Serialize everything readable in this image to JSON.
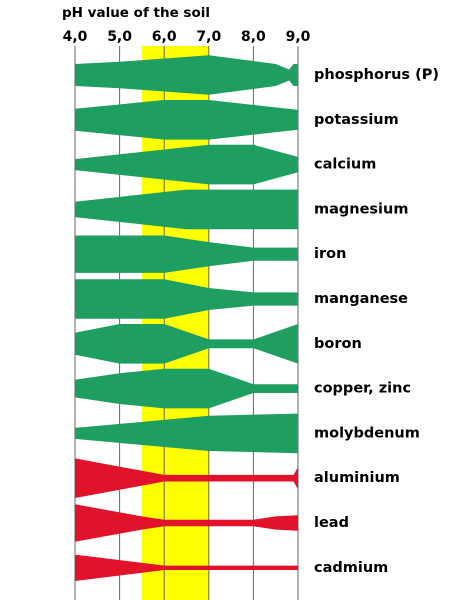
{
  "chart_data": {
    "type": "band",
    "title": "pH value of the soil",
    "xlim": [
      4,
      9
    ],
    "xticks": [
      {
        "value": 4,
        "label": "4,0"
      },
      {
        "value": 5,
        "label": "5,0"
      },
      {
        "value": 6,
        "label": "6,0"
      },
      {
        "value": 7,
        "label": "7,0"
      },
      {
        "value": 8,
        "label": "8,0"
      },
      {
        "value": 9,
        "label": "9,0"
      }
    ],
    "grid": true,
    "highlight": {
      "range": [
        5.5,
        7
      ],
      "color": "#ffff00"
    },
    "series": [
      {
        "name": "phosphorus (P)",
        "color": "#1f9e62",
        "x": [
          4,
          5,
          7,
          8.5,
          8.8,
          8.9,
          9
        ],
        "values": [
          0.5,
          0.6,
          0.9,
          0.5,
          0.25,
          0.5,
          0.5
        ]
      },
      {
        "name": "potassium",
        "color": "#1f9e62",
        "x": [
          4,
          6,
          7,
          9
        ],
        "values": [
          0.5,
          0.9,
          0.9,
          0.45
        ]
      },
      {
        "name": "calcium",
        "color": "#1f9e62",
        "x": [
          4,
          7,
          8,
          9
        ],
        "values": [
          0.25,
          0.9,
          0.9,
          0.35
        ]
      },
      {
        "name": "magnesium",
        "color": "#1f9e62",
        "x": [
          4,
          6.5,
          9
        ],
        "values": [
          0.35,
          0.9,
          0.9
        ]
      },
      {
        "name": "iron",
        "color": "#1f9e62",
        "x": [
          4,
          6,
          7,
          8,
          9
        ],
        "values": [
          0.85,
          0.85,
          0.55,
          0.3,
          0.3
        ]
      },
      {
        "name": "manganese",
        "color": "#1f9e62",
        "x": [
          4,
          6,
          7,
          8,
          9
        ],
        "values": [
          0.9,
          0.9,
          0.5,
          0.3,
          0.3
        ]
      },
      {
        "name": "boron",
        "color": "#1f9e62",
        "x": [
          4,
          5,
          6,
          7,
          8,
          9
        ],
        "values": [
          0.5,
          0.9,
          0.9,
          0.2,
          0.2,
          0.9
        ]
      },
      {
        "name": "copper, zinc",
        "color": "#1f9e62",
        "x": [
          4,
          5,
          6,
          7,
          8,
          9
        ],
        "values": [
          0.4,
          0.7,
          0.9,
          0.9,
          0.2,
          0.2
        ]
      },
      {
        "name": "molybdenum",
        "color": "#1f9e62",
        "x": [
          4,
          7,
          9
        ],
        "values": [
          0.25,
          0.8,
          0.9
        ]
      },
      {
        "name": "aluminium",
        "color": "#e3122b",
        "x": [
          4,
          6,
          8.9,
          9
        ],
        "values": [
          0.9,
          0.15,
          0.15,
          0.5
        ]
      },
      {
        "name": "lead",
        "color": "#e3122b",
        "x": [
          4,
          5.5,
          6,
          8,
          8.5,
          9
        ],
        "values": [
          0.85,
          0.3,
          0.15,
          0.15,
          0.3,
          0.35
        ]
      },
      {
        "name": "cadmium",
        "color": "#e3122b",
        "x": [
          4,
          6,
          9
        ],
        "values": [
          0.6,
          0.1,
          0.1
        ]
      }
    ]
  }
}
